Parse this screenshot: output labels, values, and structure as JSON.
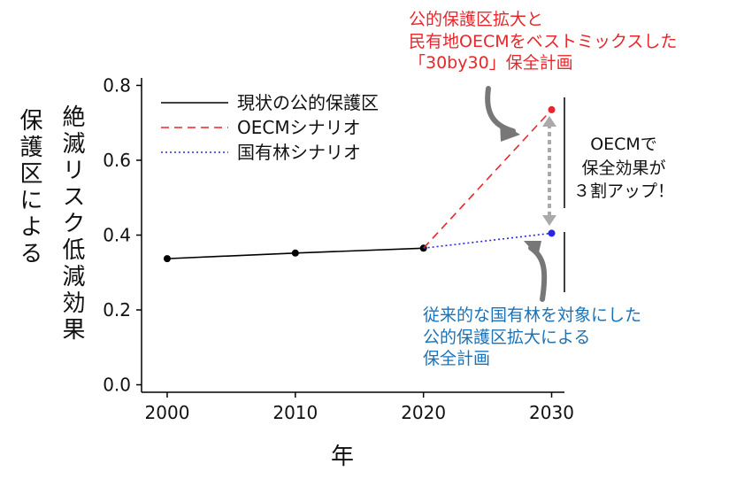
{
  "chart_data": {
    "type": "line",
    "x": [
      2000,
      2010,
      2020,
      2030
    ],
    "xlabel": "年",
    "ylabel_parts": [
      "保護区による",
      "絶滅リスク低減効果"
    ],
    "xlim": [
      1998,
      2031
    ],
    "ylim": [
      -0.02,
      0.82
    ],
    "xticks": [
      "2000",
      "2010",
      "2020",
      "2030"
    ],
    "yticks": [
      "0.0",
      "0.2",
      "0.4",
      "0.6",
      "0.8"
    ],
    "legend_position": "top-left",
    "series": [
      {
        "name": "現状の公的保護区",
        "x": [
          2000,
          2010,
          2020
        ],
        "values": [
          0.337,
          0.352,
          0.365
        ],
        "color": "#000000",
        "style": "solid",
        "markers": true
      },
      {
        "name": "OECMシナリオ",
        "x": [
          2020,
          2030
        ],
        "values": [
          0.365,
          0.735
        ],
        "color": "#e8262b",
        "style": "dashed",
        "markers": false,
        "end_marker": true
      },
      {
        "name": "国有林シナリオ",
        "x": [
          2020,
          2030
        ],
        "values": [
          0.365,
          0.405
        ],
        "color": "#2828e0",
        "style": "dotted",
        "markers": false,
        "end_marker": true
      }
    ],
    "annotations": {
      "top": {
        "lines": [
          "公的保護区拡大と",
          "民有地OECMをベストミックスした",
          "「30by30」保全計画"
        ],
        "color": "#e8262b"
      },
      "bottom": {
        "lines": [
          "従来的な国有林を対象にした",
          "公的保護区拡大による",
          "保全計画"
        ],
        "color": "#1a73b8"
      },
      "side": {
        "lines": [
          "OECMで",
          "保全効果が",
          "３割アップ！"
        ],
        "color": "#111111"
      }
    }
  }
}
